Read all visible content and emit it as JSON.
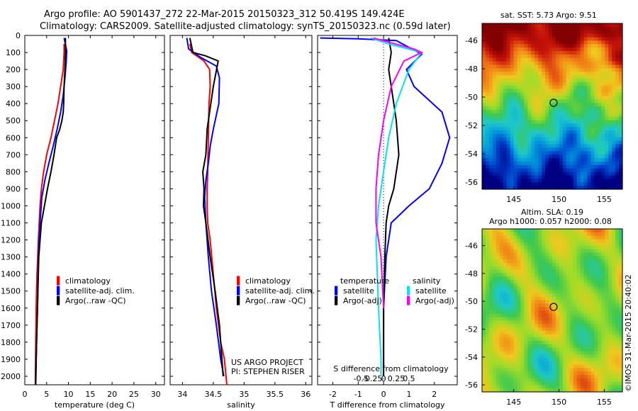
{
  "header": {
    "line1": "Argo profile: AO 5901437_272 22-Mar-2015 20150323_312 50.419S 149.424E",
    "line2": "Climatology: CARS2009. Satellite-adjusted climatology: synTS_20150323.nc (0.59d later)"
  },
  "colors": {
    "climatology": "#ff0000",
    "satellite": "#0000ff",
    "argo": "#000000",
    "argo_s_diff": "#ff00ff",
    "sat_s_diff": "#00e5ee"
  },
  "chart_data": [
    {
      "type": "line",
      "panel": "temperature",
      "xlabel": "temperature (deg C)",
      "ylabel": "",
      "xlim": [
        0,
        32
      ],
      "ylim": [
        2050,
        0
      ],
      "xticks": [
        0,
        5,
        10,
        15,
        20,
        25,
        30
      ],
      "yticks": [
        0,
        100,
        200,
        300,
        400,
        500,
        600,
        700,
        800,
        900,
        1000,
        1100,
        1200,
        1300,
        1400,
        1500,
        1600,
        1700,
        1800,
        1900,
        2000
      ],
      "legend": [
        "climatology",
        "satellite-adj. clim.",
        "Argo(..raw -QC)"
      ],
      "series": [
        {
          "name": "climatology",
          "color": "#ff0000",
          "x": [
            9.0,
            9.0,
            8.8,
            8.2,
            7.6,
            6.8,
            6.0,
            5.0,
            4.3,
            3.8,
            3.5,
            3.1,
            2.8,
            2.6,
            2.5,
            2.4
          ],
          "y": [
            50,
            100,
            200,
            300,
            400,
            500,
            600,
            700,
            800,
            900,
            1000,
            1200,
            1400,
            1600,
            1800,
            2050
          ]
        },
        {
          "name": "satellite-adj. clim.",
          "color": "#0000ff",
          "x": [
            9.0,
            9.6,
            9.5,
            9.2,
            8.8,
            8.2,
            7.4,
            6.5,
            5.5,
            4.6,
            3.9,
            3.5,
            3.1,
            2.9,
            2.7,
            2.5
          ],
          "y": [
            15,
            90,
            150,
            250,
            350,
            450,
            550,
            650,
            750,
            850,
            950,
            1100,
            1300,
            1600,
            1800,
            2000
          ]
        },
        {
          "name": "Argo(..raw -QC)",
          "color": "#000000",
          "x": [
            9.3,
            9.3,
            9.2,
            9.0,
            8.9,
            8.8,
            8.5,
            8.0,
            7.3,
            6.7,
            6.0,
            5.2,
            4.5,
            3.8,
            3.2,
            2.9,
            2.7,
            2.5
          ],
          "y": [
            15,
            100,
            200,
            300,
            400,
            450,
            500,
            550,
            600,
            700,
            800,
            900,
            1000,
            1100,
            1300,
            1600,
            1800,
            2050
          ]
        }
      ]
    },
    {
      "type": "line",
      "panel": "salinity",
      "xlabel": "salinity",
      "xlim": [
        33.8,
        36.1
      ],
      "ylim": [
        2050,
        0
      ],
      "xticks": [
        34,
        34.5,
        35,
        35.5,
        36
      ],
      "legend": [
        "climatology",
        "satellite-adj. clim.",
        "Argo(..raw -QC)"
      ],
      "annotations": [
        "US ARGO PROJECT",
        "PI: STEPHEN RISER"
      ],
      "series": [
        {
          "name": "climatology",
          "color": "#ff0000",
          "x": [
            34.12,
            34.15,
            34.35,
            34.44,
            34.45,
            34.43,
            34.42,
            34.41,
            34.4,
            34.4,
            34.41,
            34.45,
            34.5,
            34.55,
            34.62,
            34.68,
            34.72
          ],
          "y": [
            50,
            100,
            150,
            200,
            300,
            400,
            600,
            800,
            900,
            1000,
            1100,
            1200,
            1400,
            1600,
            1800,
            1900,
            2050
          ]
        },
        {
          "name": "satellite-adj. clim.",
          "color": "#0000ff",
          "x": [
            34.07,
            34.1,
            34.3,
            34.55,
            34.6,
            34.59,
            34.5,
            34.45,
            34.42,
            34.38,
            34.36,
            34.38,
            34.42,
            34.47,
            34.55,
            34.62,
            34.67
          ],
          "y": [
            15,
            80,
            130,
            180,
            250,
            400,
            550,
            650,
            750,
            850,
            950,
            1100,
            1300,
            1500,
            1700,
            1900,
            2000
          ]
        },
        {
          "name": "Argo(..raw -QC)",
          "color": "#000000",
          "x": [
            34.12,
            34.17,
            34.38,
            34.58,
            34.5,
            34.46,
            34.4,
            34.38,
            34.33,
            34.35,
            34.34,
            34.38,
            34.45,
            34.53,
            34.6,
            34.64,
            34.66
          ],
          "y": [
            15,
            100,
            120,
            150,
            300,
            400,
            550,
            700,
            800,
            900,
            1000,
            1100,
            1300,
            1500,
            1700,
            1900,
            2000
          ]
        }
      ]
    },
    {
      "type": "line",
      "panel": "difference",
      "xlabel": "T difference from climatology",
      "x2label": "S difference from climatology",
      "xlim": [
        -2.6,
        2.9
      ],
      "ylim": [
        2050,
        0
      ],
      "xticks": [
        -2,
        -1,
        0,
        1,
        2
      ],
      "x2ticks": [
        "-0.5",
        "-0.25",
        "0",
        "0.25",
        "0.5"
      ],
      "legend_groups": [
        {
          "title": "temperature",
          "items": [
            "satellite",
            "Argo(-adj)"
          ]
        },
        {
          "title": "salinity",
          "items": [
            "satellite",
            "Argo(-adj)"
          ]
        }
      ],
      "series": [
        {
          "name": "temperature satellite",
          "color": "#0000ff",
          "x": [
            -2.5,
            -1.0,
            0.5,
            1.5,
            0.9,
            1.2,
            2.3,
            2.6,
            2.3,
            1.8,
            1.0,
            0.3,
            0.1,
            0.0,
            0.0
          ],
          "y": [
            15,
            20,
            30,
            110,
            200,
            300,
            450,
            600,
            750,
            900,
            1000,
            1100,
            1300,
            1600,
            2000
          ]
        },
        {
          "name": "temperature Argo(-adj)",
          "color": "#000000",
          "x": [
            0.2,
            0.3,
            0.2,
            0.3,
            0.4,
            0.5,
            0.6,
            0.4,
            0.2,
            0.1,
            0.05,
            0.0,
            0.0
          ],
          "y": [
            15,
            100,
            200,
            300,
            400,
            500,
            700,
            900,
            1000,
            1100,
            1300,
            1600,
            2000
          ]
        },
        {
          "name": "salinity satellite",
          "color": "#00e5ee",
          "x": [
            -0.5,
            0.2,
            1.5,
            1.0,
            0.5,
            0.2,
            0.0,
            -0.2,
            -0.3,
            -0.2,
            -0.1,
            -0.1
          ],
          "y": [
            15,
            50,
            100,
            200,
            400,
            600,
            800,
            1000,
            1200,
            1600,
            1900,
            2000
          ]
        },
        {
          "name": "salinity Argo(-adj)",
          "color": "#ff00ff",
          "x": [
            -0.4,
            1.2,
            1.5,
            0.8,
            0.3,
            0.0,
            -0.2,
            -0.3,
            -0.3,
            -0.1,
            0.0
          ],
          "y": [
            15,
            80,
            100,
            150,
            300,
            500,
            700,
            900,
            1100,
            1300,
            1600
          ]
        }
      ]
    },
    {
      "type": "heatmap",
      "panel": "sst-map",
      "title": "sat. SST: 5.73 Argo: 9.51",
      "xlim": [
        141.5,
        157
      ],
      "ylim": [
        -56.5,
        -44.8
      ],
      "xticks": [
        145,
        150,
        155
      ],
      "yticks": [
        -46,
        -48,
        -50,
        -52,
        -54,
        -56
      ],
      "marker": {
        "lon": 149.4,
        "lat": -50.4
      }
    },
    {
      "type": "heatmap",
      "panel": "sla-map",
      "title": "Altim. SLA: 0.19",
      "subtitle": "Argo h1000: 0.057 h2000: 0.08",
      "xlim": [
        141.5,
        157
      ],
      "ylim": [
        -56.5,
        -44.8
      ],
      "xticks": [
        145,
        150,
        155
      ],
      "yticks": [
        -46,
        -48,
        -50,
        -52,
        -54,
        -56
      ],
      "marker": {
        "lon": 149.4,
        "lat": -50.4
      },
      "credit": "©IMOS 31-Mar-2015 20:40:02"
    }
  ]
}
